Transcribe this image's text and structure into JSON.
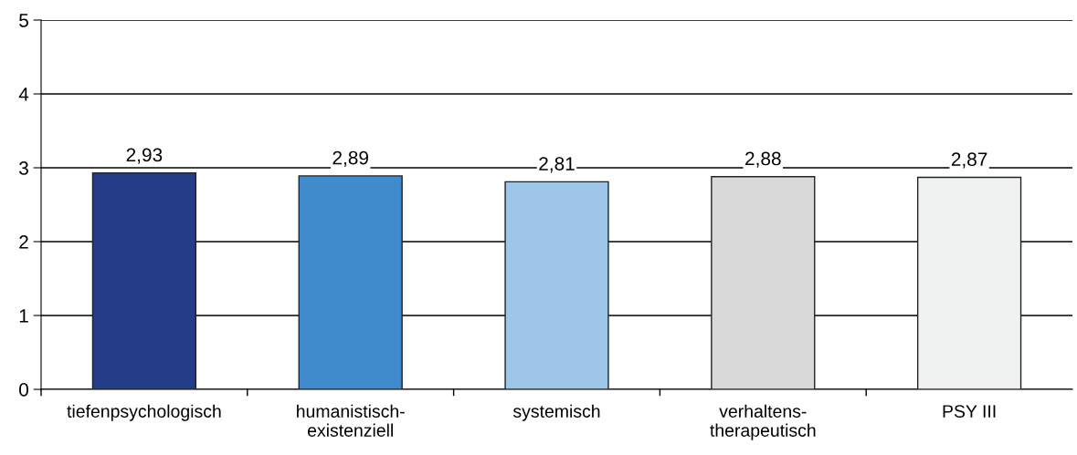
{
  "chart_data": {
    "type": "bar",
    "categories": [
      "tiefenpsychologisch",
      "humanistisch-\nexistenziell",
      "systemisch",
      "verhaltens-\ntherapeutisch",
      "PSY III"
    ],
    "values": [
      2.93,
      2.89,
      2.81,
      2.88,
      2.87
    ],
    "colors": [
      "#253c88",
      "#3f8bcb",
      "#9dc6e8",
      "#d9d9d9",
      "#f0f2f1"
    ],
    "value_labels": [
      "2,93",
      "2,89",
      "2,81",
      "2,88",
      "2,87"
    ],
    "ylim": [
      0,
      5
    ],
    "yticks": [
      0,
      1,
      2,
      3,
      4,
      5
    ],
    "grid": "y",
    "legend": false
  }
}
